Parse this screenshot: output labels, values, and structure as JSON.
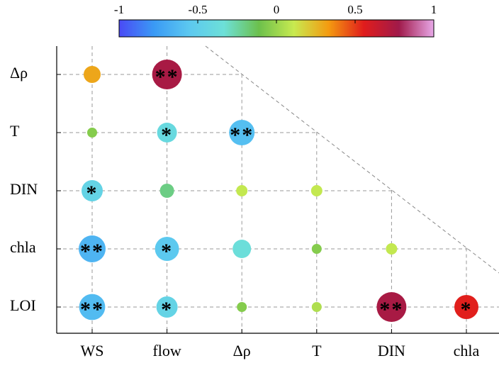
{
  "chart_data": {
    "type": "correlation",
    "rows": [
      "Δρ",
      "T",
      "DIN",
      "chla",
      "LOI"
    ],
    "columns": [
      "WS",
      "flow",
      "Δρ",
      "T",
      "DIN",
      "chla"
    ],
    "values": [
      [
        0.3,
        0.75,
        null,
        null,
        null,
        null
      ],
      [
        -0.05,
        -0.4,
        -0.6,
        null,
        null,
        null
      ],
      [
        -0.45,
        -0.2,
        0.1,
        0.1,
        null,
        null
      ],
      [
        -0.65,
        -0.55,
        -0.35,
        -0.05,
        0.1,
        null
      ],
      [
        -0.62,
        -0.45,
        -0.05,
        0.05,
        0.75,
        0.55
      ]
    ],
    "significance": [
      [
        null,
        "**",
        null,
        null,
        null,
        null
      ],
      [
        null,
        "*",
        "**",
        null,
        null,
        null
      ],
      [
        "*",
        null,
        null,
        null,
        null,
        null
      ],
      [
        "**",
        "*",
        null,
        null,
        null,
        null
      ],
      [
        "**",
        "*",
        null,
        null,
        "**",
        "*"
      ]
    ],
    "colorbar": {
      "lim": [
        -1,
        1
      ],
      "ticks": [
        -1,
        -0.5,
        0,
        0.5,
        1
      ],
      "colors": [
        "#4a4af5",
        "#3a9af5",
        "#5cc8f0",
        "#6de0d8",
        "#6cc04c",
        "#c8ea50",
        "#f49a10",
        "#e01c1c",
        "#a01a4a",
        "#e8a8e8"
      ]
    },
    "grid": true
  }
}
